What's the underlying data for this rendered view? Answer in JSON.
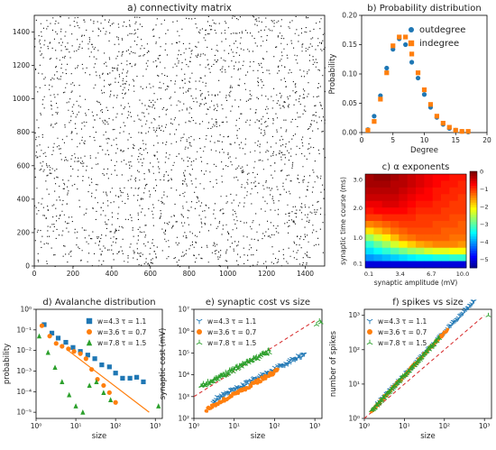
{
  "chart_data": [
    {
      "id": "a",
      "type": "scatter",
      "title": "a) connectivity matrix",
      "xlim": [
        0,
        1500
      ],
      "ylim": [
        0,
        1500
      ],
      "xticks": [
        0,
        200,
        400,
        600,
        800,
        1000,
        1200,
        1400
      ],
      "yticks": [
        0,
        200,
        400,
        600,
        800,
        1000,
        1200,
        1400
      ],
      "n_neurons": 1500,
      "connection_probability": 0.004,
      "grid": false
    },
    {
      "id": "b",
      "type": "scatter",
      "title": "b) Probability distribution",
      "xlabel": "Degree",
      "ylabel": "Probability",
      "xlim": [
        0,
        20
      ],
      "ylim": [
        0,
        0.2
      ],
      "xticks": [
        0,
        5,
        10,
        15,
        20
      ],
      "yticks": [
        0.0,
        0.05,
        0.1,
        0.15,
        0.2
      ],
      "ytick_labels": [
        "0.00",
        "0.05",
        "0.10",
        "0.15",
        "0.20"
      ],
      "legend_position": "top-right",
      "series": [
        {
          "name": "outdegree",
          "marker": "circle",
          "color": "#1f77b4",
          "x": [
            1,
            2,
            3,
            4,
            5,
            6,
            7,
            8,
            9,
            10,
            11,
            12,
            13,
            14,
            15,
            16,
            17
          ],
          "y": [
            0.005,
            0.028,
            0.063,
            0.11,
            0.142,
            0.16,
            0.15,
            0.12,
            0.093,
            0.065,
            0.043,
            0.026,
            0.014,
            0.007,
            0.004,
            0.002,
            0.001
          ]
        },
        {
          "name": "indegree",
          "marker": "square",
          "color": "#ff7f0e",
          "x": [
            1,
            2,
            3,
            4,
            5,
            6,
            7,
            8,
            9,
            10,
            11,
            12,
            13,
            14,
            15,
            16,
            17
          ],
          "y": [
            0.004,
            0.019,
            0.057,
            0.102,
            0.148,
            0.163,
            0.163,
            0.134,
            0.102,
            0.073,
            0.048,
            0.028,
            0.016,
            0.009,
            0.004,
            0.002,
            0.002
          ]
        }
      ]
    },
    {
      "id": "c",
      "type": "heatmap",
      "title": "c) α exponents",
      "xlabel": "synaptic amplitude (mV)",
      "ylabel": "synaptic time course (ms)",
      "xticks": [
        "0.1",
        "3.4",
        "6.7",
        "10.0"
      ],
      "yticks": [
        "0.1",
        "1.0",
        "2.0",
        "3.0"
      ],
      "colorbar_ticks": [
        0,
        -1,
        -2,
        -3,
        -4,
        -5
      ],
      "colorbar_range": [
        -5.5,
        0
      ],
      "colormap": "jet",
      "rows_top_to_bottom": [
        [
          -0.2,
          -0.1,
          -0.1,
          -0.2,
          -0.3,
          -0.4,
          -0.5,
          -0.6,
          -0.7,
          -0.7,
          -0.8,
          -0.8
        ],
        [
          -0.2,
          -0.2,
          -0.2,
          -0.3,
          -0.3,
          -0.4,
          -0.5,
          -0.6,
          -0.7,
          -0.8,
          -0.8,
          -0.9
        ],
        [
          -0.3,
          -0.3,
          -0.3,
          -0.3,
          -0.4,
          -0.5,
          -0.6,
          -0.7,
          -0.8,
          -0.8,
          -0.9,
          -0.9
        ],
        [
          -0.4,
          -0.4,
          -0.4,
          -0.4,
          -0.5,
          -0.6,
          -0.7,
          -0.7,
          -0.8,
          -0.9,
          -0.9,
          -1.0
        ],
        [
          -0.6,
          -0.6,
          -0.5,
          -0.5,
          -0.6,
          -0.7,
          -0.8,
          -0.8,
          -0.9,
          -0.9,
          -1.0,
          -1.0
        ],
        [
          -0.8,
          -0.7,
          -0.7,
          -0.7,
          -0.7,
          -0.8,
          -0.9,
          -0.9,
          -0.9,
          -1.0,
          -1.0,
          -1.0
        ],
        [
          -1.0,
          -1.0,
          -0.9,
          -0.9,
          -0.9,
          -0.9,
          -1.0,
          -1.0,
          -1.0,
          -1.0,
          -1.1,
          -1.1
        ],
        [
          -1.4,
          -1.3,
          -1.2,
          -1.1,
          -1.0,
          -1.0,
          -1.0,
          -1.0,
          -1.1,
          -1.1,
          -1.1,
          -1.2
        ],
        [
          -1.9,
          -1.7,
          -1.5,
          -1.3,
          -1.2,
          -1.1,
          -1.1,
          -1.1,
          -1.1,
          -1.2,
          -1.2,
          -1.2
        ],
        [
          -2.6,
          -2.3,
          -2.0,
          -1.7,
          -1.4,
          -1.3,
          -1.2,
          -1.2,
          -1.2,
          -1.2,
          -1.3,
          -1.3
        ],
        [
          -3.2,
          -2.9,
          -2.6,
          -2.3,
          -2.0,
          -1.8,
          -1.6,
          -1.5,
          -1.4,
          -1.4,
          -1.4,
          -1.5
        ],
        [
          -3.6,
          -3.4,
          -3.2,
          -3.0,
          -2.8,
          -2.6,
          -2.5,
          -2.3,
          -2.2,
          -2.2,
          -2.1,
          -2.1
        ],
        [
          -4.0,
          -3.9,
          -3.8,
          -3.7,
          -3.6,
          -3.5,
          -3.4,
          -3.4,
          -3.3,
          -3.3,
          -3.2,
          -3.2
        ],
        [
          -5.0,
          -5.0,
          -5.0,
          -5.0,
          -5.0,
          -5.0,
          -5.0,
          -5.0,
          -5.0,
          -5.0,
          -5.0,
          -5.0
        ]
      ]
    },
    {
      "id": "d",
      "type": "scatter",
      "title": "d) Avalanche distribution",
      "xlabel": "size",
      "ylabel": "probability",
      "xscale": "log",
      "yscale": "log",
      "xlim": [
        1,
        1500
      ],
      "ylim": [
        5e-06,
        1
      ],
      "xticks": [
        1,
        10,
        100,
        1000
      ],
      "xtick_labels": [
        "10⁰",
        "10¹",
        "10²",
        "10³"
      ],
      "yticks": [
        1e-05,
        0.0001,
        0.001,
        0.01,
        0.1,
        1
      ],
      "ytick_labels": [
        "10⁻⁵",
        "10⁻⁴",
        "10⁻³",
        "10⁻²",
        "10⁻¹",
        "10⁰"
      ],
      "legend_position": "top-right",
      "series": [
        {
          "name": "w=4.3  τ = 1.1",
          "marker": "square",
          "color": "#1f77b4",
          "x": [
            1.6,
            2.5,
            3.6,
            5.6,
            8.5,
            13,
            20,
            30,
            45,
            70,
            100,
            150,
            230,
            340,
            500
          ],
          "y": [
            0.18,
            0.07,
            0.04,
            0.025,
            0.014,
            0.009,
            0.006,
            0.004,
            0.002,
            0.0016,
            0.0008,
            0.00045,
            0.00045,
            0.0005,
            0.0003
          ]
        },
        {
          "name": "w=3.6  τ = 0.7",
          "marker": "circle",
          "color": "#ff7f0e",
          "x": [
            1.4,
            2.2,
            3.2,
            4.5,
            6.5,
            9,
            13,
            18,
            25,
            35,
            50,
            70,
            100
          ],
          "y": [
            0.16,
            0.05,
            0.022,
            0.016,
            0.012,
            0.009,
            0.007,
            0.004,
            0.0012,
            0.0004,
            0.0002,
            9e-05,
            3e-05
          ]
        },
        {
          "name": "w=7.8  τ = 1.5",
          "marker": "triangle",
          "color": "#2ca02c",
          "x": [
            1.2,
            2,
            3,
            4.5,
            6.8,
            10,
            15,
            22,
            33,
            50,
            75,
            1200
          ],
          "y": [
            0.05,
            0.008,
            0.0015,
            0.0003,
            7e-05,
            2e-05,
            1e-05,
            0.0002,
            0.0003,
            9e-05,
            4e-05,
            2e-05
          ]
        }
      ],
      "fit_line": {
        "color": "#ff7f0e",
        "x": [
          6,
          700
        ],
        "y": [
          0.011,
          1e-05
        ]
      }
    },
    {
      "id": "e",
      "type": "scatter",
      "title": "e) synaptic cost vs size",
      "xlabel": "size",
      "ylabel": "synaptic cost (mV)",
      "xscale": "log",
      "yscale": "log",
      "xlim": [
        1,
        1500
      ],
      "ylim": [
        100,
        10000000
      ],
      "xticks": [
        1,
        10,
        100,
        1000
      ],
      "xtick_labels": [
        "10⁰",
        "10¹",
        "10²",
        "10³"
      ],
      "yticks": [
        100,
        1000,
        10000,
        100000,
        1000000,
        10000000
      ],
      "ytick_labels": [
        "10²",
        "10³",
        "10⁴",
        "10⁵",
        "10⁶",
        "10⁷"
      ],
      "legend_position": "top-left",
      "series": [
        {
          "name": "w=4.3  τ = 1.1",
          "marker": "tri_down",
          "color": "#1f77b4",
          "x_range": [
            3,
            550
          ],
          "y_at_min": 650,
          "y_at_max": 90000
        },
        {
          "name": "w=3.6  τ = 0.7",
          "marker": "circle",
          "color": "#ff7f0e",
          "x_range": [
            2,
            120
          ],
          "y_at_min": 250,
          "y_at_max": 16000
        },
        {
          "name": "w=7.8  τ = 1.5",
          "marker": "tri_up",
          "color": "#2ca02c",
          "x_range": [
            1.5,
            75
          ],
          "y_at_min": 3000,
          "y_at_max": 120000,
          "outliers": [
            [
              1100,
              2000000
            ],
            [
              1300,
              3000000
            ],
            [
              1400,
              2500000
            ]
          ]
        }
      ],
      "reference_line": {
        "style": "dashed",
        "color": "#d62728",
        "x": [
          1,
          1000
        ],
        "y": [
          1000,
          3000000
        ]
      }
    },
    {
      "id": "f",
      "type": "scatter",
      "title": "f) spikes vs size",
      "xlabel": "size",
      "ylabel": "number of spikes",
      "xscale": "log",
      "yscale": "log",
      "xlim": [
        1,
        1500
      ],
      "ylim": [
        1,
        1500
      ],
      "xticks": [
        1,
        10,
        100,
        1000
      ],
      "xtick_labels": [
        "10⁰",
        "10¹",
        "10²",
        "10³"
      ],
      "yticks": [
        1,
        10,
        100,
        1000
      ],
      "ytick_labels": [
        "10⁰",
        "10¹",
        "10²",
        "10³"
      ],
      "legend_position": "top-left",
      "series": [
        {
          "name": "w=4.3  τ = 1.1",
          "marker": "tri_down",
          "color": "#1f77b4",
          "x_range": [
            2,
            550
          ],
          "slope": 1.25
        },
        {
          "name": "w=3.6  τ = 0.7",
          "marker": "circle",
          "color": "#ff7f0e",
          "x_range": [
            1.5,
            120
          ],
          "slope": 1.25
        },
        {
          "name": "w=7.8  τ = 1.5",
          "marker": "tri_up",
          "color": "#2ca02c",
          "x_range": [
            1.5,
            75
          ],
          "slope": 1.25,
          "outliers": [
            [
              1250,
              1000
            ]
          ]
        }
      ],
      "reference_line": {
        "style": "dashed",
        "color": "#d62728",
        "x": [
          1,
          1000
        ],
        "y": [
          1,
          1000
        ]
      }
    }
  ]
}
